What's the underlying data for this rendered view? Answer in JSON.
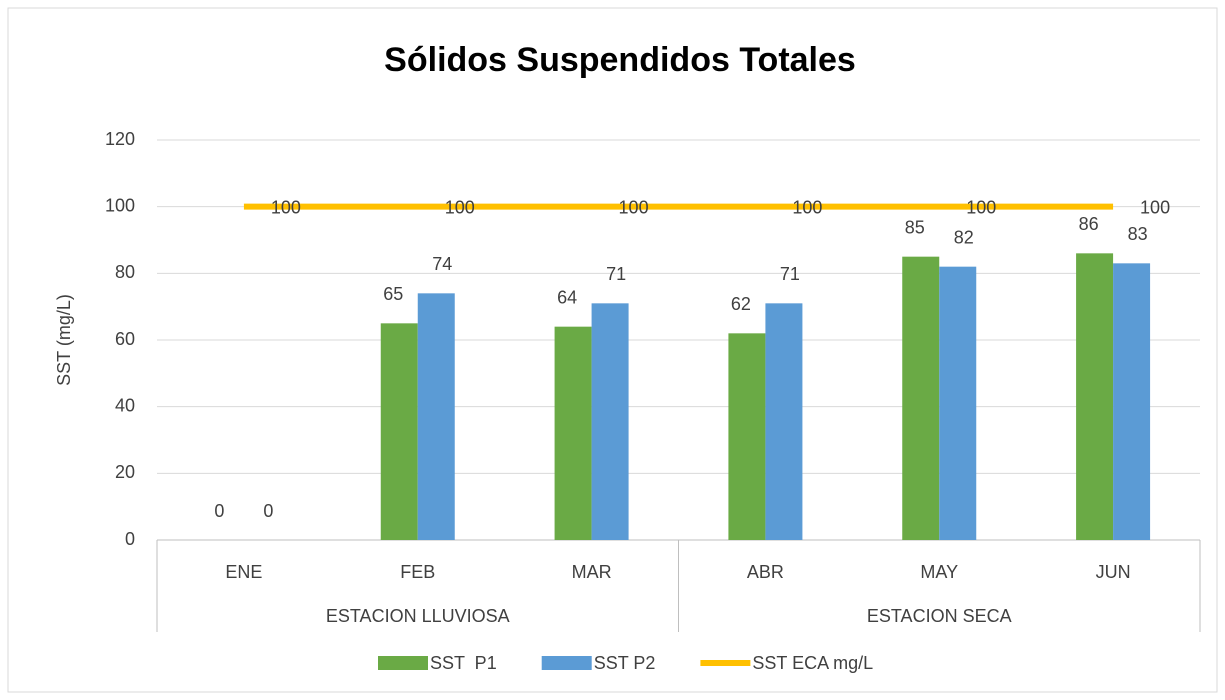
{
  "chart_data": {
    "type": "bar",
    "title": "Sólidos Suspendidos Totales",
    "y_label": "SST   (mg/L)",
    "categories": [
      "ENE",
      "FEB",
      "MAR",
      "ABR",
      "MAY",
      "JUN"
    ],
    "groups": [
      {
        "label": "ESTACION LLUVIOSA",
        "span": 3
      },
      {
        "label": "ESTACION SECA",
        "span": 3
      }
    ],
    "series": [
      {
        "name": "SST  P1",
        "type": "bar",
        "color": "#6aaa45",
        "values": [
          0,
          65,
          64,
          62,
          85,
          86
        ]
      },
      {
        "name": "SST P2",
        "type": "bar",
        "color": "#5b9bd5",
        "values": [
          0,
          74,
          71,
          71,
          82,
          83
        ]
      },
      {
        "name": "SST ECA mg/L",
        "type": "line",
        "color": "#ffc000",
        "values": [
          100,
          100,
          100,
          100,
          100,
          100
        ]
      }
    ],
    "ylim": [
      0,
      120
    ],
    "yticks": [
      0,
      20,
      40,
      60,
      80,
      100,
      120
    ],
    "grid": true,
    "legend": "bottom"
  }
}
